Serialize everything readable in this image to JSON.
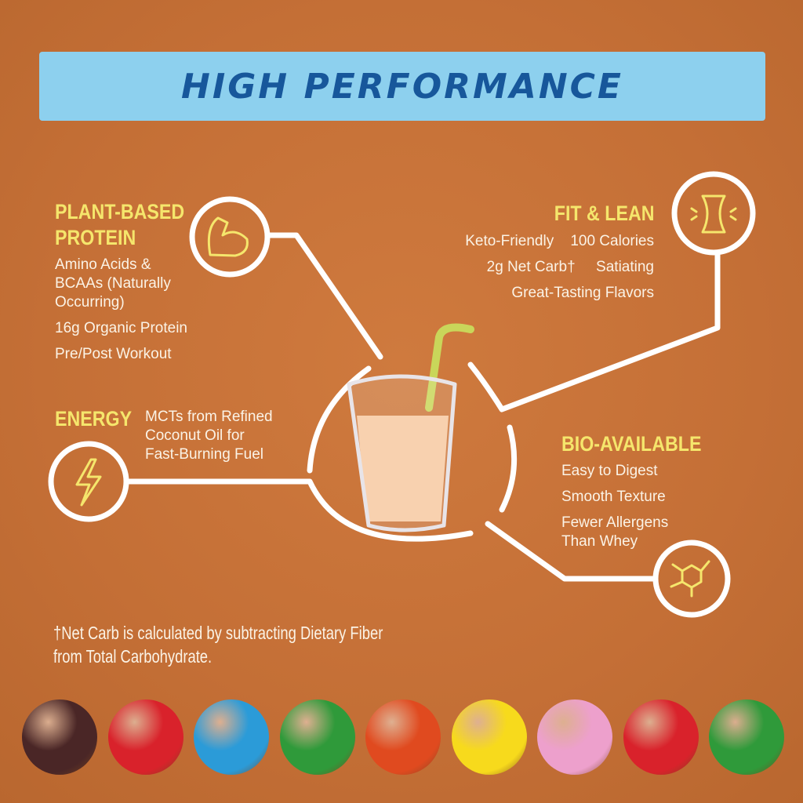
{
  "banner": {
    "title": "HIGH PERFORMANCE",
    "background": "#8dd0ee",
    "text_color": "#17579b"
  },
  "sections": {
    "protein": {
      "title_line1": "PLANT-BASED",
      "title_line2": "PROTEIN",
      "items": [
        "Amino Acids &",
        "BCAAs (Naturally",
        "Occurring)",
        "16g Organic Protein",
        "Pre/Post Workout"
      ],
      "icon": "flexed-arm-icon"
    },
    "fit": {
      "title": "FIT & LEAN",
      "row1a": "Keto-Friendly",
      "row1b": "100 Calories",
      "row2a": "2g Net Carb†",
      "row2b": "Satiating",
      "row3": "Great-Tasting Flavors",
      "icon": "waist-icon"
    },
    "energy": {
      "title": "ENERGY",
      "items": [
        "MCTs from Refined",
        "Coconut Oil for",
        "Fast-Burning Fuel"
      ],
      "icon": "lightning-bolt-icon"
    },
    "bio": {
      "title": "BIO-AVAILABLE",
      "items": [
        "Easy to Digest",
        "Smooth Texture",
        "Fewer Allergens",
        "Than Whey"
      ],
      "icon": "molecule-icon"
    }
  },
  "footnote": {
    "line1": "†Net Carb is calculated by subtracting Dietary Fiber",
    "line2": "from Total Carbohydrate."
  },
  "colors": {
    "heading": "#f5e66c",
    "background": "#c8733a"
  },
  "candies": [
    "#4a2626",
    "#d9222b",
    "#2b9bd8",
    "#2f9a3a",
    "#e04a1f",
    "#f7da1c",
    "#eda0cc",
    "#d9222b",
    "#2f9a3a"
  ]
}
